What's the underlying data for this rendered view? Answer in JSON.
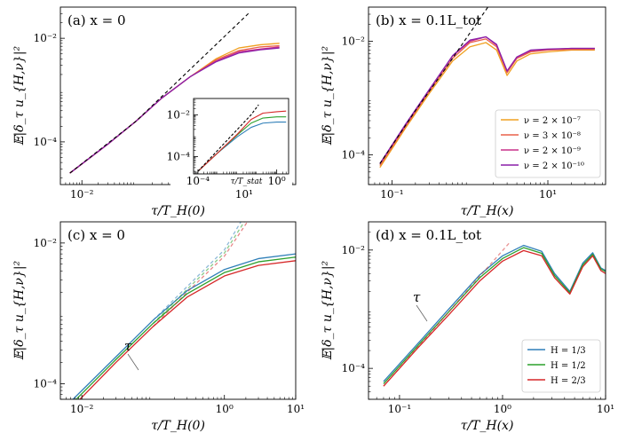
{
  "figure": {
    "panels": [
      {
        "id": "a",
        "title": "(a) x = 0",
        "xlabel": "τ/T_H(0)",
        "ylabel": "𝔼|δ_τ u_{H,ν}|²",
        "xticks": [
          {
            "v": 0.01,
            "label": "10⁻²"
          },
          {
            "v": 10,
            "label": "10¹"
          }
        ],
        "yticks": [
          {
            "v": 0.0001,
            "label": "10⁻⁴"
          },
          {
            "v": 0.01,
            "label": "10⁻²"
          }
        ],
        "inset": {
          "xlabel": "τ/T_stat",
          "xticks": [
            {
              "v": 0.0001,
              "label": "10⁻⁴"
            },
            {
              "v": 1,
              "label": "10⁰"
            }
          ],
          "yticks": [
            {
              "v": 0.0001,
              "label": "10⁻⁴"
            },
            {
              "v": 0.01,
              "label": "10⁻²"
            }
          ]
        }
      },
      {
        "id": "b",
        "title": "(b) x = 0.1L_tot",
        "xlabel": "τ/T_H(x)",
        "ylabel": "𝔼|δ_τ u_{H,ν}|²",
        "xticks": [
          {
            "v": 0.1,
            "label": "10⁻¹"
          },
          {
            "v": 10,
            "label": "10¹"
          }
        ],
        "yticks": [
          {
            "v": 0.0001,
            "label": "10⁻⁴"
          },
          {
            "v": 0.01,
            "label": "10⁻²"
          }
        ],
        "legend": [
          "ν = 2 × 10⁻⁷",
          "ν = 3 × 10⁻⁸",
          "ν = 2 × 10⁻⁹",
          "ν = 2 × 10⁻¹⁰"
        ]
      },
      {
        "id": "c",
        "title": "(c) x = 0",
        "xlabel": "τ/T_H(0)",
        "ylabel": "𝔼|δ_τ u_{H,ν}|²",
        "xticks": [
          {
            "v": 0.01,
            "label": "10⁻²"
          },
          {
            "v": 1,
            "label": "10⁰"
          },
          {
            "v": 10,
            "label": "10¹"
          }
        ],
        "yticks": [
          {
            "v": 0.0001,
            "label": "10⁻⁴"
          },
          {
            "v": 0.01,
            "label": "10⁻²"
          }
        ],
        "annotation": "τ"
      },
      {
        "id": "d",
        "title": "(d) x = 0.1L_tot",
        "xlabel": "τ/T_H(x)",
        "ylabel": "𝔼|δ_τ u_{H,ν}|²",
        "xticks": [
          {
            "v": 0.1,
            "label": "10⁻¹"
          },
          {
            "v": 1,
            "label": "10⁰"
          },
          {
            "v": 10,
            "label": "10¹"
          }
        ],
        "yticks": [
          {
            "v": 0.0001,
            "label": "10⁻⁴"
          },
          {
            "v": 0.01,
            "label": "10⁻²"
          }
        ],
        "annotation": "τ",
        "legend": [
          "H = 1/3",
          "H = 1/2",
          "H = 2/3"
        ]
      }
    ],
    "colors": {
      "nu_2e-7": "#f0a020",
      "nu_3e-8": "#e8604a",
      "nu_2e-9": "#c8308a",
      "nu_2e-10": "#8a1fa8",
      "H_1_3": "#2f7fb8",
      "H_1_2": "#2ca02c",
      "H_2_3": "#d62728",
      "reference": "#000000"
    }
  },
  "chart_data": [
    {
      "panel": "a",
      "type": "line",
      "title": "(a) x = 0",
      "xlabel": "τ/T_H(0)",
      "ylabel": "𝔼|δ_τ u_{H,ν}|²",
      "xscale": "log",
      "yscale": "log",
      "xlim": [
        0.004,
        90
      ],
      "ylim": [
        1.5e-05,
        0.04
      ],
      "series": [
        {
          "name": "ν = 2 × 10⁻⁷",
          "x": [
            0.006,
            0.03,
            0.1,
            0.3,
            1,
            3,
            8,
            20,
            45
          ],
          "y": [
            2.5e-05,
            9e-05,
            0.00025,
            0.0007,
            0.0018,
            0.004,
            0.0065,
            0.0075,
            0.008
          ]
        },
        {
          "name": "ν = 3 × 10⁻⁸",
          "x": [
            0.006,
            0.03,
            0.1,
            0.3,
            1,
            3,
            8,
            20,
            45
          ],
          "y": [
            2.5e-05,
            9e-05,
            0.00025,
            0.0007,
            0.0018,
            0.0038,
            0.0058,
            0.0068,
            0.0072
          ]
        },
        {
          "name": "ν = 2 × 10⁻⁹",
          "x": [
            0.006,
            0.03,
            0.1,
            0.3,
            1,
            3,
            8,
            20,
            45
          ],
          "y": [
            2.5e-05,
            9e-05,
            0.00025,
            0.0007,
            0.0018,
            0.0036,
            0.0055,
            0.0062,
            0.0068
          ]
        },
        {
          "name": "ν = 2 × 10⁻¹⁰",
          "x": [
            0.006,
            0.03,
            0.1,
            0.3,
            1,
            3,
            8,
            20,
            45
          ],
          "y": [
            2.5e-05,
            9e-05,
            0.00025,
            0.0007,
            0.0018,
            0.0035,
            0.0052,
            0.006,
            0.0065
          ]
        },
        {
          "name": "reference τ",
          "style": "dashed",
          "x": [
            0.006,
            0.1,
            1,
            5,
            12
          ],
          "y": [
            2.5e-05,
            0.00025,
            0.0025,
            0.0125,
            0.03
          ]
        }
      ],
      "inset": {
        "xlabel": "τ/T_stat",
        "xscale": "log",
        "yscale": "log",
        "xlim": [
          6e-05,
          4
        ],
        "ylim": [
          1.5e-05,
          0.06
        ],
        "series": [
          {
            "name": "H = 1/3",
            "x": [
              0.0001,
              0.001,
              0.01,
              0.05,
              0.2,
              1,
              3
            ],
            "y": [
              2e-05,
              0.00015,
              0.0009,
              0.0025,
              0.004,
              0.0045,
              0.0045
            ]
          },
          {
            "name": "H = 1/2",
            "x": [
              0.0001,
              0.001,
              0.01,
              0.05,
              0.2,
              1,
              3
            ],
            "y": [
              2e-05,
              0.00015,
              0.0011,
              0.004,
              0.007,
              0.008,
              0.008
            ]
          },
          {
            "name": "H = 2/3",
            "x": [
              0.0001,
              0.001,
              0.01,
              0.05,
              0.2,
              1,
              3
            ],
            "y": [
              2e-05,
              0.00015,
              0.0012,
              0.006,
              0.012,
              0.014,
              0.015
            ]
          },
          {
            "name": "reference",
            "style": "dashed",
            "x": [
              0.0001,
              0.001,
              0.01,
              0.05,
              0.12
            ],
            "y": [
              2e-05,
              0.0002,
              0.002,
              0.01,
              0.03
            ]
          }
        ]
      }
    },
    {
      "panel": "b",
      "type": "line",
      "title": "(b) x = 0.1L_tot",
      "xlabel": "τ/T_H(x)",
      "ylabel": "𝔼|δ_τ u_{H,ν}|²",
      "xscale": "log",
      "yscale": "log",
      "xlim": [
        0.05,
        55
      ],
      "ylim": [
        3e-05,
        0.04
      ],
      "series": [
        {
          "name": "ν = 2 × 10⁻⁷",
          "x": [
            0.07,
            0.15,
            0.3,
            0.6,
            1.0,
            1.6,
            2.2,
            3,
            4,
            6,
            10,
            20,
            40
          ],
          "y": [
            6e-05,
            0.0003,
            0.0012,
            0.0045,
            0.008,
            0.0095,
            0.007,
            0.0025,
            0.0045,
            0.006,
            0.0065,
            0.007,
            0.007
          ]
        },
        {
          "name": "ν = 3 × 10⁻⁸",
          "x": [
            0.07,
            0.15,
            0.3,
            0.6,
            1.0,
            1.6,
            2.2,
            3,
            4,
            6,
            10,
            20,
            40
          ],
          "y": [
            6.5e-05,
            0.00032,
            0.0013,
            0.005,
            0.0095,
            0.011,
            0.008,
            0.0028,
            0.005,
            0.0065,
            0.007,
            0.0072,
            0.0072
          ]
        },
        {
          "name": "ν = 2 × 10⁻⁹",
          "x": [
            0.07,
            0.15,
            0.3,
            0.6,
            1.0,
            1.6,
            2.2,
            3,
            4,
            6,
            10,
            20,
            40
          ],
          "y": [
            7e-05,
            0.00034,
            0.0014,
            0.0055,
            0.01,
            0.012,
            0.0085,
            0.003,
            0.0052,
            0.0068,
            0.0072,
            0.0075,
            0.0075
          ]
        },
        {
          "name": "ν = 2 × 10⁻¹⁰",
          "x": [
            0.07,
            0.15,
            0.3,
            0.6,
            1.0,
            1.6,
            2.2,
            3,
            4,
            6,
            10,
            20,
            40
          ],
          "y": [
            7e-05,
            0.00035,
            0.0014,
            0.0056,
            0.0105,
            0.012,
            0.0088,
            0.003,
            0.0053,
            0.007,
            0.0073,
            0.0075,
            0.0075
          ]
        },
        {
          "name": "reference",
          "style": "dashed",
          "x": [
            0.07,
            0.2,
            0.5,
            1.0,
            1.7
          ],
          "y": [
            7e-05,
            0.0006,
            0.0035,
            0.014,
            0.04
          ]
        }
      ]
    },
    {
      "panel": "c",
      "type": "line",
      "title": "(c) x = 0",
      "xlabel": "τ/T_H(0)",
      "ylabel": "𝔼|δ_τ u_{H,ν}|²",
      "xscale": "log",
      "yscale": "log",
      "xlim": [
        0.005,
        10
      ],
      "ylim": [
        6e-05,
        0.02
      ],
      "series": [
        {
          "name": "H = 1/3",
          "x": [
            0.005,
            0.01,
            0.03,
            0.1,
            0.3,
            1,
            3,
            10
          ],
          "y": [
            4e-05,
            8e-05,
            0.00024,
            0.0008,
            0.0021,
            0.0042,
            0.006,
            0.007
          ]
        },
        {
          "name": "H = 1/2",
          "x": [
            0.005,
            0.01,
            0.03,
            0.1,
            0.3,
            1,
            3,
            10
          ],
          "y": [
            3.6e-05,
            7.2e-05,
            0.00022,
            0.00072,
            0.0019,
            0.0038,
            0.0054,
            0.0063
          ]
        },
        {
          "name": "H = 2/3",
          "x": [
            0.005,
            0.01,
            0.03,
            0.1,
            0.3,
            1,
            3,
            10
          ],
          "y": [
            3.2e-05,
            6.4e-05,
            0.0002,
            0.00065,
            0.0017,
            0.0034,
            0.0048,
            0.0056
          ]
        },
        {
          "name": "ref H = 1/3",
          "style": "dashed",
          "x": [
            0.1,
            0.3,
            1,
            1.7
          ],
          "y": [
            0.0008,
            0.0024,
            0.008,
            0.02
          ]
        },
        {
          "name": "ref H = 1/2",
          "style": "dashed",
          "x": [
            0.1,
            0.3,
            1,
            1.9
          ],
          "y": [
            0.00072,
            0.0022,
            0.0072,
            0.02
          ]
        },
        {
          "name": "ref H = 2/3",
          "style": "dashed",
          "x": [
            0.1,
            0.3,
            1,
            2.1
          ],
          "y": [
            0.00065,
            0.002,
            0.0065,
            0.02
          ]
        }
      ]
    },
    {
      "panel": "d",
      "type": "line",
      "title": "(d) x = 0.1L_tot",
      "xlabel": "τ/T_H(x)",
      "ylabel": "𝔼|δ_τ u_{H,ν}|²",
      "xscale": "log",
      "yscale": "log",
      "xlim": [
        0.05,
        10
      ],
      "ylim": [
        3e-05,
        0.03
      ],
      "series": [
        {
          "name": "H = 1/3",
          "x": [
            0.07,
            0.15,
            0.3,
            0.6,
            1.0,
            1.6,
            2.4,
            3.2,
            4.5,
            6,
            7.5,
            9,
            10
          ],
          "y": [
            6e-05,
            0.00026,
            0.001,
            0.0038,
            0.008,
            0.012,
            0.0095,
            0.004,
            0.002,
            0.006,
            0.009,
            0.005,
            0.0045
          ]
        },
        {
          "name": "H = 1/2",
          "x": [
            0.07,
            0.15,
            0.3,
            0.6,
            1.0,
            1.6,
            2.4,
            3.2,
            4.5,
            6,
            7.5,
            9,
            10
          ],
          "y": [
            5.5e-05,
            0.00024,
            0.0009,
            0.0034,
            0.0072,
            0.011,
            0.0088,
            0.0037,
            0.0019,
            0.0056,
            0.0085,
            0.0048,
            0.0043
          ]
        },
        {
          "name": "H = 2/3",
          "x": [
            0.07,
            0.15,
            0.3,
            0.6,
            1.0,
            1.6,
            2.4,
            3.2,
            4.5,
            6,
            7.5,
            9,
            10
          ],
          "y": [
            5e-05,
            0.00022,
            0.0008,
            0.003,
            0.0065,
            0.0098,
            0.008,
            0.0034,
            0.0018,
            0.0052,
            0.008,
            0.0045,
            0.004
          ]
        },
        {
          "name": "ref",
          "style": "dashed",
          "x": [
            0.07,
            0.2,
            0.6,
            1.2
          ],
          "y": [
            5e-05,
            0.0004,
            0.0036,
            0.014
          ]
        }
      ]
    }
  ]
}
